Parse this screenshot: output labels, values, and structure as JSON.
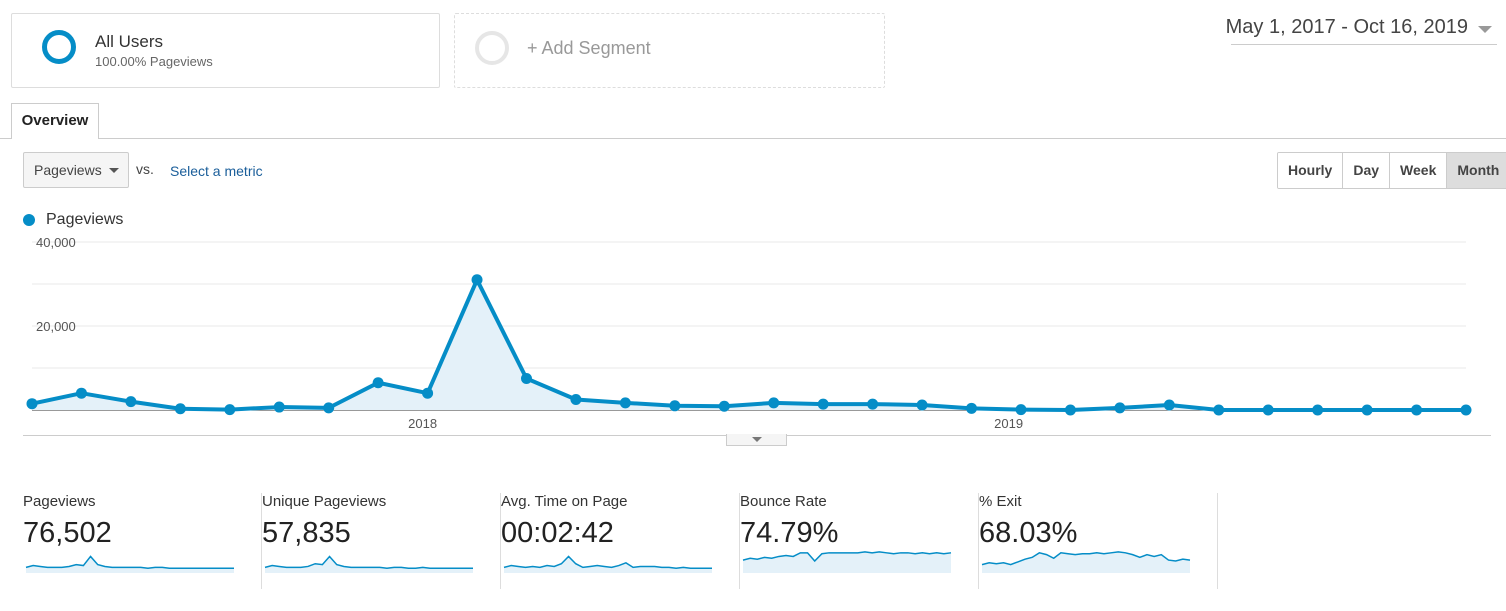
{
  "segments": {
    "active": {
      "title": "All Users",
      "subtitle": "100.00% Pageviews"
    },
    "add_label": "+ Add Segment"
  },
  "date_range": "May 1, 2017 - Oct 16, 2019",
  "tabs": [
    {
      "label": "Overview"
    }
  ],
  "metric_selector": {
    "selected": "Pageviews",
    "vs_label": "vs.",
    "select_metric_label": "Select a metric"
  },
  "time_buttons": [
    {
      "label": "Hourly"
    },
    {
      "label": "Day"
    },
    {
      "label": "Week"
    },
    {
      "label": "Month",
      "active": true
    }
  ],
  "legend": {
    "series": "Pageviews"
  },
  "colors": {
    "accent": "#058dc7",
    "fill": "#e4f1f9"
  },
  "chart_data": {
    "type": "line",
    "series": [
      {
        "name": "Pageviews",
        "values": [
          1500,
          4000,
          2000,
          300,
          100,
          700,
          500,
          6500,
          4000,
          31000,
          7500,
          2500,
          1700,
          1000,
          900,
          1700,
          1400,
          1400,
          1200,
          400,
          100,
          0,
          500,
          1200,
          0,
          0,
          0,
          0,
          0,
          0
        ]
      }
    ],
    "x_ticks": [
      "2018",
      "2019"
    ],
    "y_ticks": [
      "20,000",
      "40,000"
    ],
    "ylim": [
      0,
      40000
    ],
    "grid": true,
    "area_fill": true
  },
  "scorecards": [
    {
      "label": "Pageviews",
      "value": "76,502",
      "spark": [
        4,
        6,
        5,
        4,
        4,
        4,
        5,
        7,
        6,
        16,
        7,
        5,
        4,
        4,
        4,
        4,
        4,
        3,
        4,
        4,
        3,
        3,
        3,
        3,
        3,
        3,
        3,
        3,
        3,
        3
      ]
    },
    {
      "label": "Unique Pageviews",
      "value": "57,835",
      "spark": [
        4,
        6,
        5,
        4,
        4,
        4,
        5,
        8,
        7,
        16,
        7,
        5,
        4,
        4,
        4,
        4,
        4,
        3,
        4,
        4,
        3,
        3,
        4,
        3,
        3,
        3,
        3,
        3,
        3,
        3
      ]
    },
    {
      "label": "Avg. Time on Page",
      "value": "00:02:42",
      "spark": [
        4,
        6,
        5,
        4,
        5,
        4,
        6,
        5,
        8,
        16,
        8,
        4,
        5,
        6,
        5,
        4,
        6,
        9,
        4,
        5,
        5,
        5,
        4,
        4,
        3,
        4,
        3,
        3,
        3,
        3
      ]
    },
    {
      "label": "Bounce Rate",
      "value": "74.79%",
      "spark": [
        12,
        14,
        13,
        15,
        14,
        16,
        17,
        16,
        20,
        20,
        11,
        19,
        20,
        20,
        20,
        20,
        20,
        21,
        20,
        21,
        20,
        19,
        20,
        20,
        19,
        20,
        19,
        20,
        19,
        20
      ]
    },
    {
      "label": "% Exit",
      "value": "68.03%",
      "spark": [
        7,
        9,
        8,
        9,
        7,
        10,
        13,
        15,
        20,
        18,
        14,
        20,
        19,
        18,
        19,
        19,
        20,
        19,
        20,
        21,
        20,
        18,
        15,
        18,
        16,
        18,
        12,
        11,
        13,
        12
      ]
    }
  ]
}
